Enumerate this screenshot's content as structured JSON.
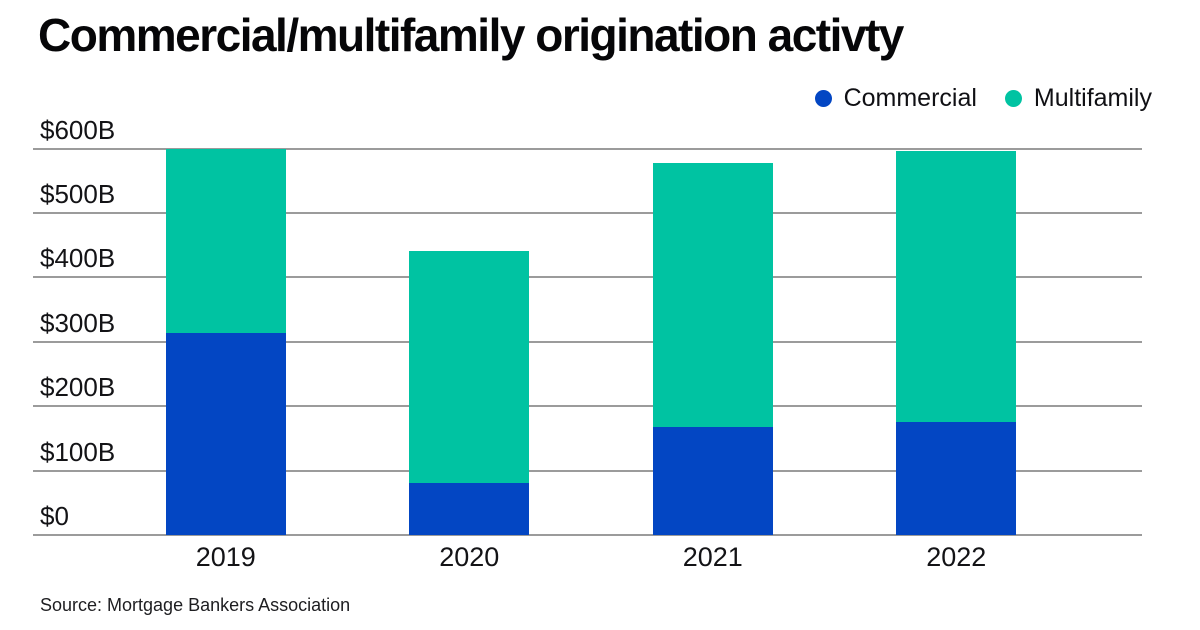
{
  "header": {
    "title": "Commercial/multifamily origination activty"
  },
  "footer": {
    "source": "Source: Mortgage Bankers Association"
  },
  "colors": {
    "commercial_blue": "#0346C3",
    "multifamily_teal": "#00C3A2",
    "gridline_gray": "#9b9b9b",
    "text_dark": "#101014"
  },
  "chart_data": {
    "type": "bar",
    "stacked": true,
    "title": "Commercial/multifamily origination activty",
    "categories": [
      "2019",
      "2020",
      "2021",
      "2022"
    ],
    "series": [
      {
        "name": "Commercial",
        "color": "#0346C3",
        "values": [
          313,
          81,
          168,
          175
        ]
      },
      {
        "name": "Multifamily",
        "color": "#00C3A2",
        "values": [
          287,
          360,
          409,
          421
        ]
      }
    ],
    "totals": [
      600,
      441,
      577,
      596
    ],
    "units": "billions USD",
    "xlabel": "",
    "ylabel": "",
    "ylim": [
      0,
      600
    ],
    "y_ticks": [
      {
        "value": 0,
        "label": "$0"
      },
      {
        "value": 100,
        "label": "$100B"
      },
      {
        "value": 200,
        "label": "$200B"
      },
      {
        "value": 300,
        "label": "$300B"
      },
      {
        "value": 400,
        "label": "$400B"
      },
      {
        "value": 500,
        "label": "$500B"
      },
      {
        "value": 600,
        "label": "$600B"
      }
    ],
    "grid": "horizontal",
    "legend_position": "top-right",
    "source": "Source: Mortgage Bankers Association"
  }
}
